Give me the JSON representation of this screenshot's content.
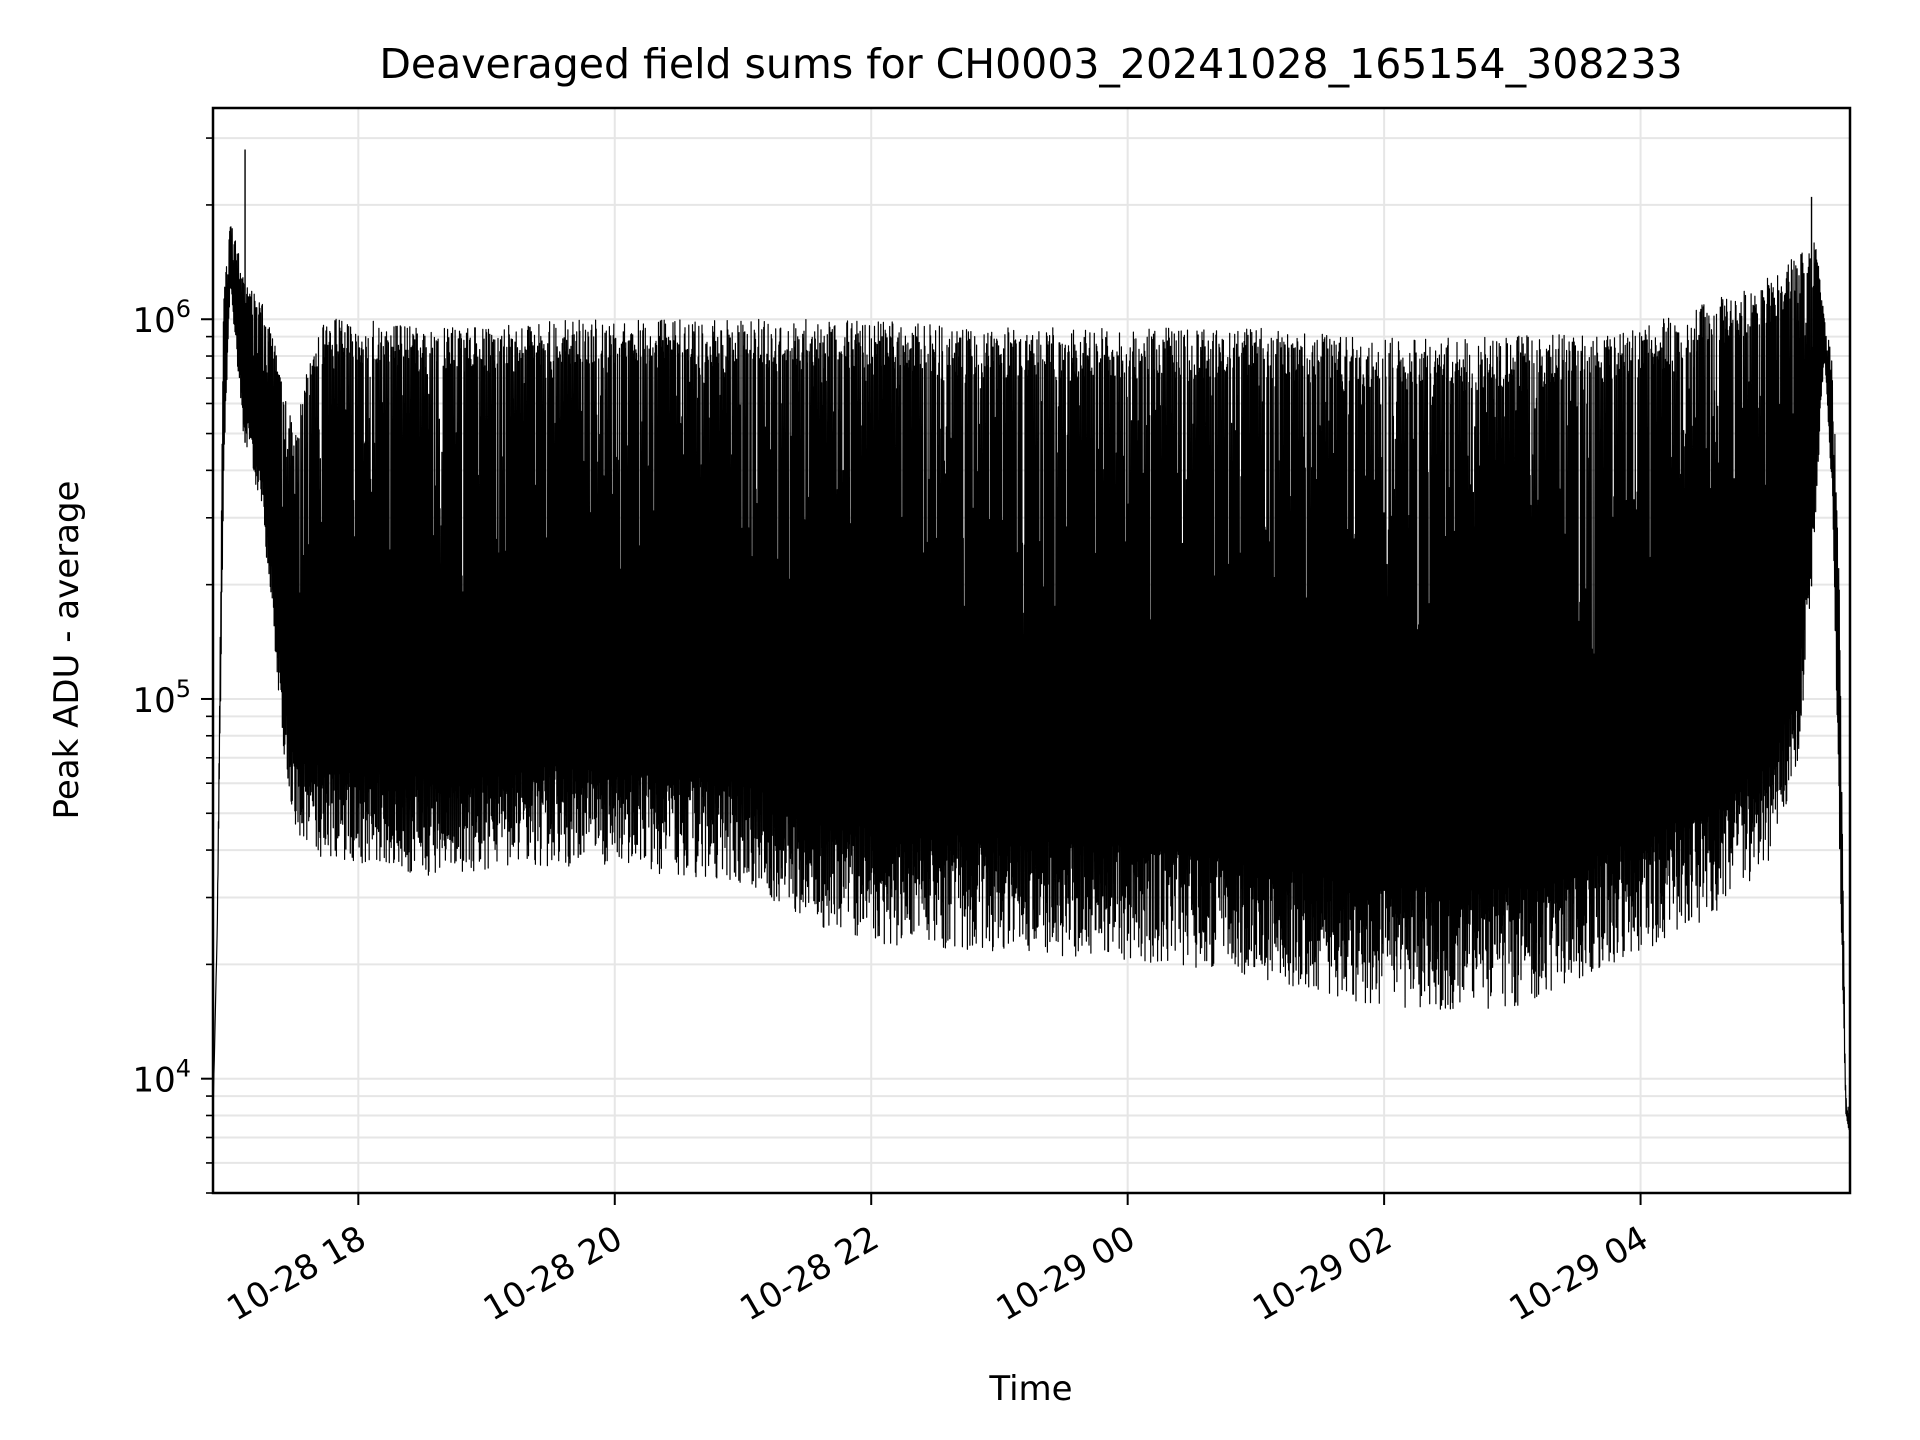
{
  "chart_data": {
    "type": "line",
    "title": "Deaveraged field sums for CH0003_20241028_165154_308233",
    "xlabel": "Time",
    "ylabel": "Peak ADU - average",
    "yscale": "log",
    "ylim": [
      5000,
      3600000
    ],
    "xlim": [
      "2024-10-28 16:52",
      "2024-10-29 05:38"
    ],
    "x_ticks": [
      "10-28 18",
      "10-28 20",
      "10-28 22",
      "10-29 00",
      "10-29 02",
      "10-29 04"
    ],
    "y_ticks": [
      {
        "base": "10",
        "exp": "4",
        "value": 10000
      },
      {
        "base": "10",
        "exp": "5",
        "value": 100000
      },
      {
        "base": "10",
        "exp": "6",
        "value": 1000000
      }
    ],
    "grid": true,
    "legend": "none",
    "line_color": "#000000",
    "series": [
      {
        "x": [
          "2024-10-28 16:52",
          "2024-10-28 16:54",
          "2024-10-28 16:57",
          "2024-10-28 17:00",
          "2024-10-28 17:03",
          "2024-10-28 17:06",
          "2024-10-28 17:10",
          "2024-10-28 17:15",
          "2024-10-28 17:20",
          "2024-10-28 17:25",
          "2024-10-28 17:30",
          "2024-10-28 17:35",
          "2024-10-28 17:40",
          "2024-10-28 17:45",
          "2024-10-28 18:00",
          "2024-10-28 18:30",
          "2024-10-28 19:00",
          "2024-10-28 19:30",
          "2024-10-28 20:00",
          "2024-10-28 20:30",
          "2024-10-28 21:00",
          "2024-10-28 21:30",
          "2024-10-28 22:00",
          "2024-10-28 23:00",
          "2024-10-29 00:00",
          "2024-10-29 01:00",
          "2024-10-29 02:00",
          "2024-10-29 03:00",
          "2024-10-29 04:00",
          "2024-10-29 04:30",
          "2024-10-29 05:00",
          "2024-10-29 05:15",
          "2024-10-29 05:22",
          "2024-10-29 05:26",
          "2024-10-29 05:30",
          "2024-10-29 05:33",
          "2024-10-29 05:36",
          "2024-10-29 05:38"
        ],
        "y_floor": [
          8000,
          25000,
          350000,
          1200000,
          800000,
          500000,
          400000,
          300000,
          150000,
          70000,
          45000,
          38000,
          36000,
          35000,
          34000,
          32000,
          33000,
          34000,
          33000,
          32000,
          30000,
          24000,
          21000,
          20000,
          19000,
          17000,
          14000,
          14000,
          20000,
          24000,
          33000,
          70000,
          300000,
          800000,
          300000,
          40000,
          8000,
          7000
        ],
        "y_peak": [
          8000,
          25000,
          1200000,
          1800000,
          1600000,
          1300000,
          1200000,
          1100000,
          900000,
          700000,
          500000,
          700000,
          900000,
          1000000,
          1000000,
          950000,
          950000,
          1000000,
          1000000,
          1000000,
          1000000,
          1000000,
          1000000,
          950000,
          950000,
          950000,
          900000,
          900000,
          950000,
          1100000,
          1300000,
          1500000,
          1600000,
          1000000,
          800000,
          200000,
          9000,
          8000
        ]
      }
    ],
    "annotations": {
      "peak_max": {
        "x": "2024-10-28 17:07",
        "y": 2800000
      },
      "late_spike": {
        "x": "2024-10-29 05:20",
        "y": 2100000
      }
    }
  }
}
